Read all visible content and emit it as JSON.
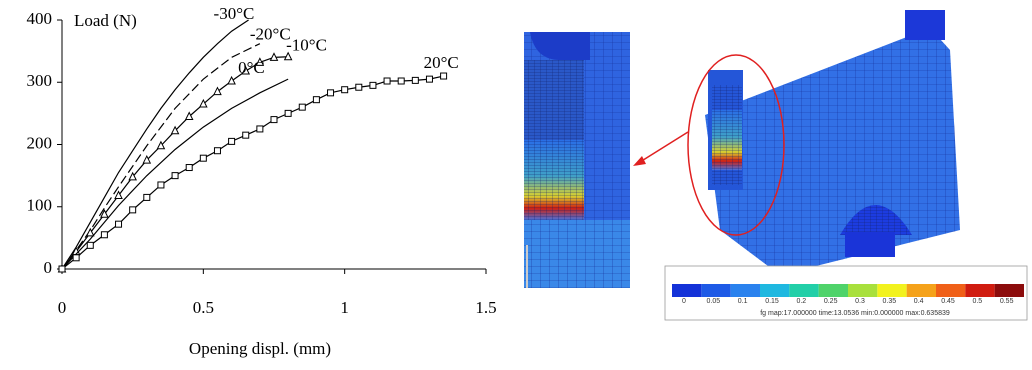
{
  "chart_data": {
    "type": "line",
    "y_label": "Load (N)",
    "x_label": "Opening displ. (mm)",
    "xlim": [
      0,
      1.5
    ],
    "xticks": [
      0,
      0.5,
      1,
      1.5
    ],
    "ylim": [
      0,
      400
    ],
    "yticks": [
      0,
      100,
      200,
      300,
      400
    ],
    "series": [
      {
        "name": "-30°C",
        "color": "#000000",
        "marker": "none",
        "dash": false,
        "x": [
          0,
          0.05,
          0.1,
          0.15,
          0.2,
          0.25,
          0.3,
          0.35,
          0.4,
          0.45,
          0.5,
          0.55,
          0.6,
          0.66
        ],
        "values": [
          0,
          35,
          75,
          115,
          155,
          190,
          225,
          258,
          288,
          315,
          340,
          362,
          382,
          400
        ]
      },
      {
        "name": "-20°C",
        "color": "#000000",
        "marker": "none",
        "dash": true,
        "x": [
          0,
          0.05,
          0.1,
          0.15,
          0.2,
          0.3,
          0.4,
          0.5,
          0.6,
          0.7
        ],
        "values": [
          0,
          30,
          62,
          98,
          132,
          198,
          258,
          305,
          340,
          362
        ]
      },
      {
        "name": "-10°C",
        "color": "#000000",
        "marker": "triangle",
        "dash": false,
        "x": [
          0,
          0.05,
          0.1,
          0.15,
          0.2,
          0.25,
          0.3,
          0.35,
          0.4,
          0.45,
          0.5,
          0.55,
          0.6,
          0.65,
          0.7,
          0.75,
          0.8
        ],
        "values": [
          0,
          28,
          58,
          88,
          118,
          148,
          175,
          198,
          222,
          245,
          265,
          285,
          302,
          318,
          332,
          340,
          341
        ]
      },
      {
        "name": "0°C",
        "color": "#000000",
        "marker": "none",
        "dash": false,
        "x": [
          0,
          0.1,
          0.2,
          0.3,
          0.4,
          0.5,
          0.6,
          0.7,
          0.8
        ],
        "values": [
          0,
          48,
          102,
          150,
          192,
          228,
          258,
          283,
          305
        ]
      },
      {
        "name": "20°C",
        "color": "#000000",
        "marker": "square",
        "dash": false,
        "x": [
          0,
          0.05,
          0.1,
          0.15,
          0.2,
          0.25,
          0.3,
          0.35,
          0.4,
          0.45,
          0.5,
          0.55,
          0.6,
          0.65,
          0.7,
          0.75,
          0.8,
          0.85,
          0.9,
          0.95,
          1,
          1.05,
          1.1,
          1.15,
          1.2,
          1.25,
          1.3,
          1.35
        ],
        "values": [
          0,
          18,
          38,
          55,
          72,
          95,
          115,
          135,
          150,
          163,
          178,
          190,
          205,
          215,
          225,
          240,
          250,
          260,
          272,
          283,
          288,
          292,
          295,
          302,
          302,
          303,
          305,
          310
        ]
      }
    ]
  },
  "colorbar": {
    "labels": [
      "0",
      "0.05",
      "0.1",
      "0.15",
      "0.2",
      "0.25",
      "0.3",
      "0.35",
      "0.4",
      "0.45",
      "0.5",
      "0.55"
    ],
    "colors": [
      "#1432d8",
      "#1e5ae6",
      "#2a82ee",
      "#1fb8e0",
      "#22cfa8",
      "#4fd36a",
      "#a8e03c",
      "#f2f21e",
      "#f5a21a",
      "#f06018",
      "#d01c10",
      "#8c0c0c"
    ],
    "caption": "fg map:17.000000  time:13.0536      min:0.000000  max:0.635839"
  }
}
